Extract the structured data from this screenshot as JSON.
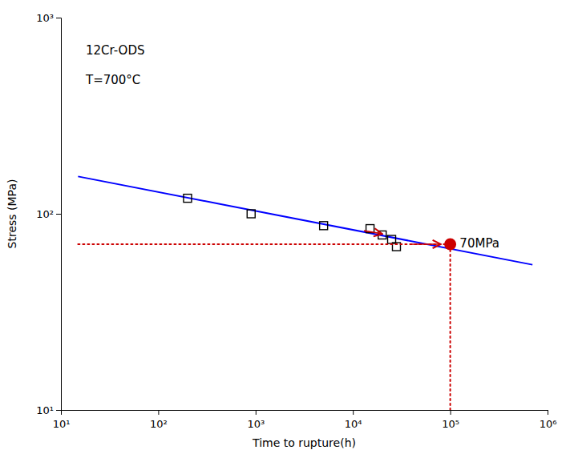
{
  "chart_data": {
    "type": "scatter",
    "log": true,
    "xlabel": "Time to rupture(h)",
    "ylabel": "Stress (MPa)",
    "xlim": [
      10,
      1000000
    ],
    "ylim": [
      10,
      1000
    ],
    "xticks": [
      {
        "value": 10,
        "label": "10¹"
      },
      {
        "value": 100,
        "label": "10²"
      },
      {
        "value": 1000,
        "label": "10³"
      },
      {
        "value": 10000,
        "label": "10⁴"
      },
      {
        "value": 100000,
        "label": "10⁵"
      },
      {
        "value": 1000000,
        "label": "10⁶"
      }
    ],
    "yticks": [
      {
        "value": 10,
        "label": "10¹"
      },
      {
        "value": 100,
        "label": "10²"
      },
      {
        "value": 1000,
        "label": "10³"
      }
    ],
    "grid": false,
    "series": [
      {
        "type": "line",
        "color": "#0000ff",
        "line_style": "solid",
        "x": [
          15,
          700000
        ],
        "values": [
          155,
          55
        ]
      },
      {
        "type": "scatter",
        "marker": "square",
        "color": "#000000",
        "x": [
          200,
          900,
          5000,
          15000,
          20000,
          25000,
          28000
        ],
        "values": [
          120,
          100,
          87,
          84,
          78,
          74,
          68
        ]
      },
      {
        "type": "line",
        "color": "#cc0000",
        "line_style": "dotted",
        "x": [
          15,
          100000
        ],
        "values": [
          70,
          70
        ]
      },
      {
        "type": "line",
        "color": "#cc0000",
        "line_style": "dotted",
        "x": [
          100000,
          100000
        ],
        "values": [
          10,
          70
        ]
      },
      {
        "type": "scatter",
        "marker": "circle",
        "color": "#cc0000",
        "x": [
          100000
        ],
        "values": [
          70
        ]
      },
      {
        "type": "arrow",
        "color": "#cc0000",
        "x": [
          13000,
          20000
        ],
        "values": [
          82,
          79
        ]
      },
      {
        "type": "arrow",
        "color": "#cc0000",
        "x": [
          40000,
          80000
        ],
        "values": [
          70,
          70
        ]
      }
    ],
    "annotations": [
      {
        "text": "12Cr-ODS",
        "x": 18,
        "y": 680
      },
      {
        "text": "T=700°C",
        "x": 18,
        "y": 480
      },
      {
        "text": "70MPa",
        "x": 125000,
        "y": 70
      }
    ]
  }
}
